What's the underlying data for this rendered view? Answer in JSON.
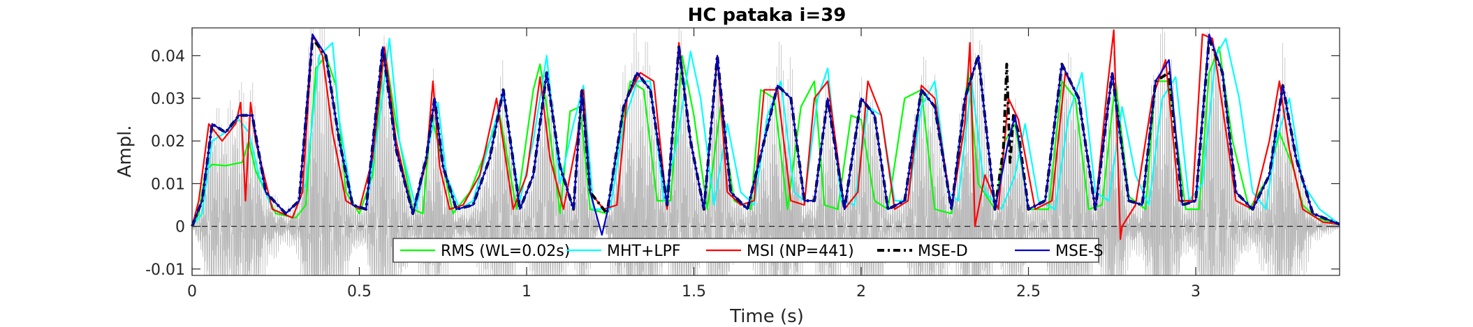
{
  "chart_data": {
    "type": "line",
    "title": "HC pataka i=39",
    "xlabel": "Time (s)",
    "ylabel": "Ampl.",
    "xlim": [
      0,
      3.43
    ],
    "ylim": [
      -0.0115,
      0.0465
    ],
    "xticks": [
      0,
      0.5,
      1,
      1.5,
      2,
      2.5,
      3
    ],
    "xtick_labels": [
      "0",
      "0.5",
      "1",
      "1.5",
      "2",
      "2.5",
      "3"
    ],
    "yticks": [
      -0.01,
      0,
      0.01,
      0.02,
      0.03,
      0.04
    ],
    "ytick_labels": [
      "-0.01",
      "0",
      "0.01",
      "0.02",
      "0.03",
      "0.04"
    ],
    "grid": false,
    "legend_position": "bottom-center",
    "legend_orientation": "horizontal",
    "background_signal": {
      "name": "speech waveform",
      "color": "#b8b8b8"
    },
    "series": [
      {
        "name": "RMS (WL=0.02s)",
        "color": "#00ff00",
        "style": "solid",
        "x": [
          0,
          0.02,
          0.04,
          0.06,
          0.1,
          0.15,
          0.17,
          0.19,
          0.25,
          0.31,
          0.34,
          0.37,
          0.4,
          0.43,
          0.46,
          0.5,
          0.54,
          0.575,
          0.61,
          0.66,
          0.69,
          0.715,
          0.74,
          0.78,
          0.83,
          0.88,
          0.92,
          0.97,
          1.02,
          1.04,
          1.06,
          1.1,
          1.13,
          1.16,
          1.19,
          1.24,
          1.28,
          1.31,
          1.35,
          1.39,
          1.43,
          1.465,
          1.5,
          1.54,
          1.58,
          1.62,
          1.67,
          1.7,
          1.74,
          1.78,
          1.82,
          1.86,
          1.89,
          1.93,
          1.97,
          2.0,
          2.04,
          2.08,
          2.13,
          2.18,
          2.22,
          2.27,
          2.32,
          2.35,
          2.4,
          2.43,
          2.46,
          2.5,
          2.56,
          2.6,
          2.64,
          2.68,
          2.72,
          2.76,
          2.8,
          2.85,
          2.88,
          2.92,
          2.97,
          3.01,
          3.04,
          3.07,
          3.11,
          3.16,
          3.22,
          3.25,
          3.29,
          3.32,
          3.36,
          3.43
        ],
        "y": [
          0,
          0.003,
          0.013,
          0.0145,
          0.0142,
          0.015,
          0.02,
          0.013,
          0.003,
          0.002,
          0.005,
          0.037,
          0.04,
          0.033,
          0.008,
          0.003,
          0.012,
          0.042,
          0.024,
          0.004,
          0.003,
          0.026,
          0.018,
          0.003,
          0.008,
          0.018,
          0.026,
          0.004,
          0.032,
          0.038,
          0.028,
          0.003,
          0.027,
          0.028,
          0.004,
          0.003,
          0.022,
          0.034,
          0.032,
          0.006,
          0.006,
          0.04,
          0.026,
          0.004,
          0.028,
          0.006,
          0.004,
          0.032,
          0.03,
          0.004,
          0.028,
          0.034,
          0.005,
          0.004,
          0.026,
          0.025,
          0.006,
          0.004,
          0.03,
          0.032,
          0.004,
          0.003,
          0.036,
          0.01,
          0.004,
          0.02,
          0.024,
          0.004,
          0.004,
          0.034,
          0.03,
          0.004,
          0.005,
          0.034,
          0.007,
          0.004,
          0.034,
          0.034,
          0.004,
          0.004,
          0.036,
          0.042,
          0.02,
          0.004,
          0.012,
          0.022,
          0.014,
          0.005,
          0.002,
          0.0005
        ]
      },
      {
        "name": "MHT+LPF",
        "color": "#00ffff",
        "style": "solid",
        "x": [
          0,
          0.03,
          0.06,
          0.1,
          0.14,
          0.17,
          0.2,
          0.24,
          0.3,
          0.34,
          0.38,
          0.42,
          0.44,
          0.48,
          0.52,
          0.56,
          0.59,
          0.62,
          0.67,
          0.71,
          0.735,
          0.76,
          0.8,
          0.84,
          0.89,
          0.93,
          0.98,
          1.02,
          1.06,
          1.1,
          1.14,
          1.17,
          1.2,
          1.25,
          1.29,
          1.33,
          1.37,
          1.41,
          1.45,
          1.49,
          1.52,
          1.56,
          1.6,
          1.64,
          1.68,
          1.72,
          1.76,
          1.8,
          1.83,
          1.87,
          1.9,
          1.94,
          1.98,
          2.02,
          2.06,
          2.1,
          2.14,
          2.18,
          2.22,
          2.26,
          2.29,
          2.33,
          2.37,
          2.42,
          2.46,
          2.49,
          2.53,
          2.58,
          2.62,
          2.66,
          2.7,
          2.74,
          2.78,
          2.82,
          2.86,
          2.9,
          2.94,
          2.98,
          3.02,
          3.06,
          3.09,
          3.13,
          3.17,
          3.21,
          3.24,
          3.28,
          3.32,
          3.37,
          3.43
        ],
        "y": [
          0,
          0.003,
          0.02,
          0.022,
          0.025,
          0.022,
          0.012,
          0.004,
          0.002,
          0.01,
          0.04,
          0.043,
          0.025,
          0.005,
          0.004,
          0.025,
          0.044,
          0.02,
          0.004,
          0.02,
          0.029,
          0.012,
          0.004,
          0.006,
          0.02,
          0.031,
          0.006,
          0.02,
          0.04,
          0.01,
          0.024,
          0.033,
          0.004,
          0.004,
          0.024,
          0.034,
          0.034,
          0.006,
          0.02,
          0.041,
          0.03,
          0.005,
          0.024,
          0.008,
          0.005,
          0.026,
          0.034,
          0.008,
          0.006,
          0.03,
          0.037,
          0.006,
          0.005,
          0.028,
          0.026,
          0.006,
          0.006,
          0.028,
          0.034,
          0.008,
          0.006,
          0.034,
          0.008,
          0.004,
          0.012,
          0.024,
          0.006,
          0.004,
          0.026,
          0.036,
          0.008,
          0.006,
          0.028,
          0.012,
          0.005,
          0.03,
          0.035,
          0.006,
          0.01,
          0.04,
          0.044,
          0.03,
          0.008,
          0.004,
          0.02,
          0.03,
          0.01,
          0.004,
          0.0005
        ]
      },
      {
        "name": "MSI (NP=441)",
        "color": "#ff0000",
        "style": "solid",
        "x": [
          0,
          0.02,
          0.05,
          0.09,
          0.13,
          0.145,
          0.16,
          0.175,
          0.19,
          0.24,
          0.3,
          0.33,
          0.36,
          0.39,
          0.42,
          0.46,
          0.5,
          0.54,
          0.575,
          0.61,
          0.66,
          0.7,
          0.72,
          0.74,
          0.77,
          0.81,
          0.86,
          0.91,
          0.96,
          1.0,
          1.04,
          1.07,
          1.11,
          1.15,
          1.17,
          1.19,
          1.23,
          1.27,
          1.3,
          1.34,
          1.38,
          1.42,
          1.455,
          1.49,
          1.53,
          1.57,
          1.6,
          1.64,
          1.68,
          1.71,
          1.75,
          1.79,
          1.83,
          1.86,
          1.9,
          1.95,
          1.99,
          2.02,
          2.06,
          2.1,
          2.14,
          2.18,
          2.22,
          2.27,
          2.31,
          2.325,
          2.34,
          2.37,
          2.41,
          2.44,
          2.47,
          2.52,
          2.57,
          2.61,
          2.65,
          2.7,
          2.735,
          2.755,
          2.775,
          2.78,
          2.82,
          2.87,
          2.91,
          2.95,
          2.99,
          3.02,
          3.05,
          3.08,
          3.12,
          3.17,
          3.22,
          3.25,
          3.28,
          3.32,
          3.38,
          3.43
        ],
        "y": [
          0,
          0.006,
          0.024,
          0.02,
          0.024,
          0.029,
          0.006,
          0.029,
          0.02,
          0.004,
          0.002,
          0.008,
          0.045,
          0.04,
          0.022,
          0.006,
          0.004,
          0.016,
          0.042,
          0.02,
          0.003,
          0.015,
          0.034,
          0.014,
          0.004,
          0.005,
          0.012,
          0.03,
          0.004,
          0.012,
          0.035,
          0.016,
          0.004,
          0.02,
          0.032,
          0.008,
          0.004,
          0.005,
          0.03,
          0.036,
          0.034,
          0.004,
          0.043,
          0.02,
          0.004,
          0.04,
          0.008,
          0.005,
          0.006,
          0.032,
          0.032,
          0.006,
          0.005,
          0.03,
          0.034,
          0.004,
          0.008,
          0.034,
          0.026,
          0.004,
          0.006,
          0.033,
          0.03,
          0.004,
          0.024,
          0.043,
          0.0,
          0.012,
          0.004,
          0.03,
          0.025,
          0.004,
          0.006,
          0.036,
          0.03,
          0.004,
          0.032,
          0.046,
          -0.003,
          0.0,
          0.005,
          0.03,
          0.039,
          0.006,
          0.006,
          0.045,
          0.044,
          0.028,
          0.006,
          0.004,
          0.02,
          0.034,
          0.018,
          0.004,
          0.001,
          0.0005
        ]
      },
      {
        "name": "MSE-D",
        "color": "#000000",
        "style": "dashdot",
        "x": [
          0,
          0.03,
          0.06,
          0.1,
          0.14,
          0.18,
          0.22,
          0.28,
          0.32,
          0.36,
          0.4,
          0.44,
          0.48,
          0.52,
          0.57,
          0.61,
          0.66,
          0.7,
          0.725,
          0.75,
          0.79,
          0.84,
          0.89,
          0.93,
          0.98,
          1.02,
          1.06,
          1.1,
          1.14,
          1.165,
          1.19,
          1.24,
          1.29,
          1.33,
          1.37,
          1.42,
          1.455,
          1.49,
          1.53,
          1.57,
          1.61,
          1.66,
          1.71,
          1.75,
          1.79,
          1.83,
          1.86,
          1.9,
          1.95,
          2.0,
          2.04,
          2.08,
          2.13,
          2.18,
          2.22,
          2.27,
          2.31,
          2.35,
          2.4,
          2.425,
          2.435,
          2.445,
          2.455,
          2.47,
          2.5,
          2.55,
          2.6,
          2.65,
          2.7,
          2.75,
          2.8,
          2.84,
          2.88,
          2.92,
          2.96,
          3.0,
          3.04,
          3.08,
          3.12,
          3.17,
          3.22,
          3.26,
          3.3,
          3.35,
          3.43
        ],
        "y": [
          0,
          0.006,
          0.024,
          0.022,
          0.026,
          0.026,
          0.008,
          0.003,
          0.006,
          0.044,
          0.04,
          0.02,
          0.005,
          0.004,
          0.042,
          0.018,
          0.003,
          0.016,
          0.03,
          0.014,
          0.004,
          0.005,
          0.016,
          0.032,
          0.004,
          0.012,
          0.036,
          0.014,
          0.004,
          0.032,
          0.008,
          0.003,
          0.028,
          0.036,
          0.032,
          0.005,
          0.042,
          0.02,
          0.004,
          0.04,
          0.008,
          0.004,
          0.02,
          0.033,
          0.03,
          0.006,
          0.006,
          0.03,
          0.004,
          0.03,
          0.026,
          0.004,
          0.006,
          0.032,
          0.028,
          0.004,
          0.03,
          0.04,
          0.004,
          0.018,
          0.038,
          0.015,
          0.026,
          0.022,
          0.004,
          0.006,
          0.038,
          0.03,
          0.004,
          0.036,
          0.006,
          0.005,
          0.034,
          0.036,
          0.005,
          0.006,
          0.044,
          0.036,
          0.008,
          0.004,
          0.012,
          0.033,
          0.016,
          0.003,
          0.0005
        ]
      },
      {
        "name": "MSE-S",
        "color": "#0000cc",
        "style": "solid",
        "x": [
          0,
          0.03,
          0.06,
          0.1,
          0.14,
          0.18,
          0.22,
          0.28,
          0.32,
          0.36,
          0.4,
          0.44,
          0.48,
          0.52,
          0.57,
          0.61,
          0.66,
          0.7,
          0.725,
          0.75,
          0.79,
          0.84,
          0.89,
          0.93,
          0.98,
          1.02,
          1.06,
          1.1,
          1.14,
          1.165,
          1.19,
          1.225,
          1.24,
          1.29,
          1.33,
          1.37,
          1.42,
          1.455,
          1.49,
          1.53,
          1.57,
          1.61,
          1.66,
          1.71,
          1.75,
          1.79,
          1.83,
          1.86,
          1.9,
          1.95,
          2.0,
          2.04,
          2.08,
          2.13,
          2.18,
          2.22,
          2.27,
          2.31,
          2.35,
          2.4,
          2.44,
          2.46,
          2.5,
          2.55,
          2.6,
          2.65,
          2.7,
          2.75,
          2.8,
          2.84,
          2.88,
          2.92,
          2.96,
          3.0,
          3.04,
          3.08,
          3.12,
          3.17,
          3.22,
          3.26,
          3.3,
          3.35,
          3.43
        ],
        "y": [
          0,
          0.006,
          0.024,
          0.022,
          0.026,
          0.026,
          0.008,
          0.003,
          0.006,
          0.045,
          0.04,
          0.02,
          0.005,
          0.004,
          0.042,
          0.018,
          0.003,
          0.016,
          0.03,
          0.014,
          0.004,
          0.005,
          0.016,
          0.032,
          0.004,
          0.012,
          0.036,
          0.014,
          0.004,
          0.032,
          0.008,
          -0.002,
          0.003,
          0.028,
          0.036,
          0.032,
          0.005,
          0.042,
          0.02,
          0.004,
          0.04,
          0.008,
          0.004,
          0.02,
          0.033,
          0.03,
          0.006,
          0.006,
          0.03,
          0.004,
          0.03,
          0.026,
          0.004,
          0.006,
          0.032,
          0.028,
          0.004,
          0.03,
          0.04,
          0.004,
          0.02,
          0.026,
          0.004,
          0.006,
          0.038,
          0.03,
          0.004,
          0.036,
          0.006,
          0.005,
          0.034,
          0.039,
          0.005,
          0.006,
          0.045,
          0.036,
          0.008,
          0.004,
          0.012,
          0.033,
          0.016,
          0.003,
          0.0005
        ]
      }
    ]
  }
}
